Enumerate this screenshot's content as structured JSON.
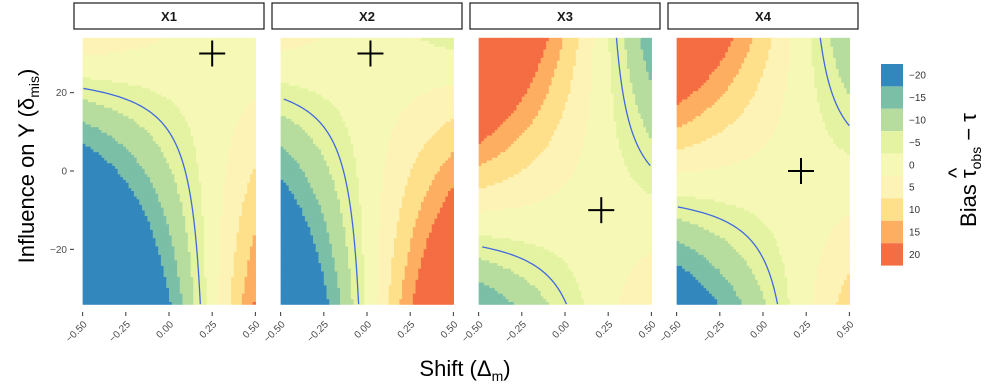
{
  "chart_data": {
    "type": "heatmap",
    "subtype": "filled-contour faceted",
    "facets": [
      {
        "label": "X1",
        "marker": {
          "x": 0.25,
          "y": 30
        }
      },
      {
        "label": "X2",
        "marker": {
          "x": 0.02,
          "y": 30
        }
      },
      {
        "label": "X3",
        "marker": {
          "x": 0.21,
          "y": -10
        }
      },
      {
        "label": "X4",
        "marker": {
          "x": 0.22,
          "y": 0
        }
      }
    ],
    "x_axis": {
      "title_main": "Shift (Δ",
      "title_sub": "m",
      "title_close": ")",
      "range": [
        -0.55,
        0.55
      ],
      "ticks": [
        -0.5,
        -0.25,
        0,
        0.25,
        0.5
      ],
      "tick_labels": [
        "−0.50",
        "−0.25",
        "0.00",
        "0.25",
        "0.50"
      ]
    },
    "y_axis": {
      "title_main": "Influence on Y (δ",
      "title_sub": "mis",
      "title_close": ")",
      "range": [
        -36,
        36
      ],
      "ticks": [
        -20,
        0,
        20
      ],
      "tick_labels": [
        "−20",
        "0",
        "20"
      ]
    },
    "legend": {
      "title_main": "Bias  ",
      "title_tau_obs": "τ",
      "title_hat": "^",
      "title_sub": "obs",
      "title_rest": " − τ",
      "levels": [
        -20,
        -15,
        -10,
        -5,
        0,
        5,
        10,
        15,
        20
      ],
      "labels": [
        "−20",
        "−15",
        "−10",
        "−5",
        "0",
        "5",
        "10",
        "15",
        "20"
      ],
      "colors": [
        "#3288bd",
        "#7bbfa7",
        "#b7dd9e",
        "#e4f3a2",
        "#f6f9b6",
        "#fef3b6",
        "#fee08b",
        "#fdae61",
        "#f46d43"
      ],
      "placement": "right"
    },
    "zero_contour_color": "#4169e1",
    "grid": false
  }
}
